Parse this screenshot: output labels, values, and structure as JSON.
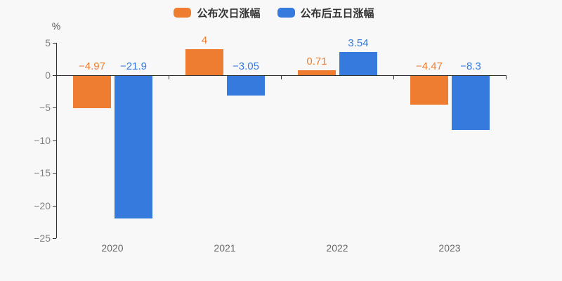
{
  "page": {
    "background": "#f8f8f8",
    "axis_color": "#333333",
    "ytick_color": "#808080",
    "xlabel_color": "#666666",
    "legend_text_color": "#333333"
  },
  "chart_data": {
    "type": "bar",
    "title": "",
    "ylabel": "%",
    "categories": [
      "2020",
      "2021",
      "2022",
      "2023"
    ],
    "series": [
      {
        "name": "公布次日涨幅",
        "color": "#EE7D31",
        "values": [
          -4.97,
          4,
          0.71,
          -4.47
        ],
        "labels": [
          "−4.97",
          "4",
          "0.71",
          "−4.47"
        ]
      },
      {
        "name": "公布后五日涨幅",
        "color": "#377ADE",
        "values": [
          -21.9,
          -3.05,
          3.54,
          -8.3
        ],
        "labels": [
          "−21.9",
          "−3.05",
          "3.54",
          "−8.3"
        ]
      }
    ],
    "ylim": [
      -25,
      5
    ],
    "yticks": [
      5,
      0,
      -5,
      -10,
      -15,
      -20,
      -25
    ],
    "ytick_interval": 5,
    "grid": false,
    "legend_position": "top"
  }
}
